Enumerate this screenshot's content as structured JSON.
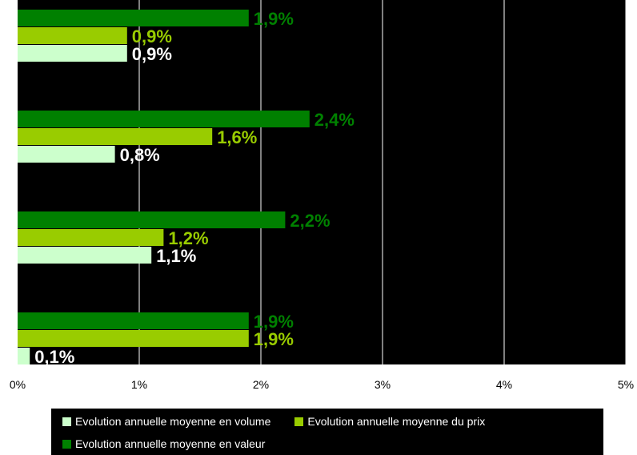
{
  "chart_data": {
    "type": "bar",
    "orientation": "horizontal",
    "categories": [
      "",
      "",
      "",
      ""
    ],
    "series": [
      {
        "name": "Evolution annuelle moyenne en volume",
        "color": "#ccffcc",
        "label_color": "#ffffff",
        "values": [
          0.9,
          0.8,
          1.1,
          0.1
        ],
        "labels": [
          "0,9%",
          "0,8%",
          "1,1%",
          "0,1%"
        ]
      },
      {
        "name": "Evolution annuelle moyenne du prix",
        "color": "#99cc00",
        "label_color": "#99cc00",
        "values": [
          0.9,
          1.6,
          1.2,
          1.9
        ],
        "labels": [
          "0,9%",
          "1,6%",
          "1,2%",
          "1,9%"
        ]
      },
      {
        "name": "Evolution annuelle moyenne en valeur",
        "color": "#008000",
        "label_color": "#008000",
        "values": [
          1.9,
          2.4,
          2.2,
          1.9
        ],
        "labels": [
          "1,9%",
          "2,4%",
          "2,2%",
          "1,9%"
        ]
      }
    ],
    "xlim": [
      0,
      5
    ],
    "x_ticks": [
      0,
      1,
      2,
      3,
      4,
      5
    ],
    "x_tick_labels": [
      "0%",
      "1%",
      "2%",
      "3%",
      "4%",
      "5%"
    ],
    "grid": "vertical",
    "plot_background": "#000000",
    "gridline_color": "#ffffff",
    "legend_position": "bottom",
    "title": "",
    "xlabel": "",
    "ylabel": ""
  }
}
